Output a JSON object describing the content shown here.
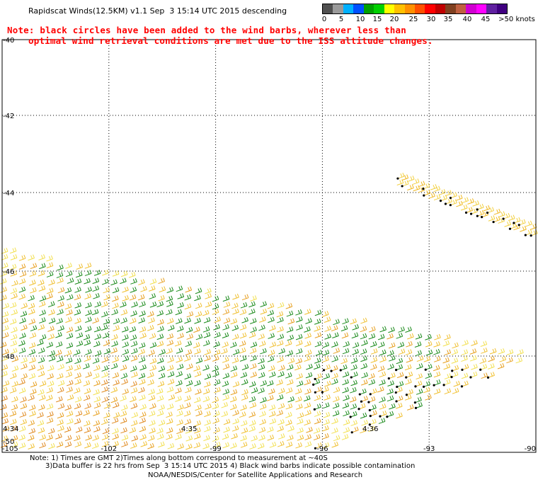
{
  "header": {
    "title": "Rapidscat Winds(12.5KM) v1.1 Sep  3 15:14 UTC 2015 descending"
  },
  "legend": {
    "colors": [
      "#505050",
      "#9a9a9a",
      "#00b0ff",
      "#0050ff",
      "#00a000",
      "#00d000",
      "#ffff00",
      "#ffc000",
      "#ff9000",
      "#ff5000",
      "#ff0000",
      "#c00000",
      "#804020",
      "#c06040",
      "#d000d0",
      "#ff00ff",
      "#6020a0",
      "#400080"
    ],
    "labels": [
      "0",
      "5",
      "10",
      "15",
      "20",
      "25",
      "30",
      "35",
      "40",
      "45",
      ">50 knots"
    ]
  },
  "note": {
    "line1": "Note: black circles have been added to the wind barbs, wherever less than",
    "line2": "optimal wind retrieval conditions are met due to the ISS altitude changes."
  },
  "map": {
    "lat_labels": [
      "-40",
      "-42",
      "-44",
      "-46",
      "-48",
      "-50"
    ],
    "lon_labels": [
      "-105",
      "-102",
      "-99",
      "-96",
      "-93",
      "-90"
    ],
    "time_labels": [
      "4:34",
      "4:35",
      "4:36"
    ]
  },
  "footer": {
    "line1": "Note: 1) Times are GMT 2)Times along bottom correspond to measurement at ~40S",
    "line2": "3)Data buffer is 22 hrs from Sep  3 15:14 UTC 2015 4) Black wind barbs indicate possible contamination",
    "credit": "NOAA/NESDIS/Center for Satellite Applications and Research"
  }
}
